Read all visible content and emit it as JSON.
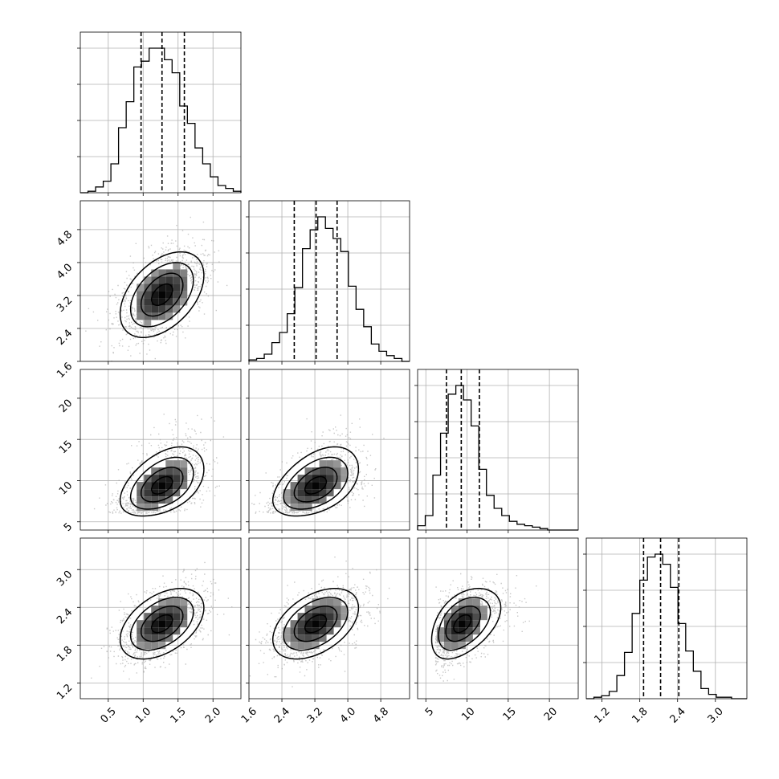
{
  "chart_data": {
    "type": "corner",
    "parameters": [
      {
        "range": [
          0.1,
          2.4
        ],
        "ticks": [
          0.5,
          1.0,
          1.5,
          2.0
        ],
        "tick_labels": [
          "0.5",
          "1.0",
          "1.5",
          "2.0"
        ],
        "quantiles": [
          0.97,
          1.27,
          1.59
        ],
        "mean": 1.27,
        "sd": 0.3
      },
      {
        "range": [
          1.6,
          5.5
        ],
        "ticks": [
          1.6,
          2.4,
          3.2,
          4.0,
          4.8
        ],
        "tick_labels": [
          "1.6",
          "2.4",
          "3.2",
          "4.0",
          "4.8"
        ],
        "quantiles": [
          2.7,
          3.23,
          3.74
        ],
        "mean": 3.22,
        "sd": 0.52
      },
      {
        "range": [
          4.0,
          23.5
        ],
        "ticks": [
          5,
          10,
          15,
          20
        ],
        "tick_labels": [
          "5",
          "10",
          "15",
          "20"
        ],
        "quantiles": [
          7.5,
          9.3,
          11.5
        ],
        "mean": 9.4,
        "sd": 2.1
      },
      {
        "range": [
          0.95,
          3.5
        ],
        "ticks": [
          1.2,
          1.8,
          2.4,
          3.0
        ],
        "tick_labels": [
          "1.2",
          "1.8",
          "2.4",
          "3.0"
        ],
        "quantiles": [
          1.86,
          2.13,
          2.42
        ],
        "mean": 2.14,
        "sd": 0.28
      }
    ],
    "correlation": 0.45,
    "histograms": [
      [
        0.0,
        0.01,
        0.04,
        0.08,
        0.2,
        0.45,
        0.63,
        0.87,
        0.91,
        1.0,
        1.0,
        0.92,
        0.83,
        0.6,
        0.48,
        0.31,
        0.2,
        0.11,
        0.05,
        0.03,
        0.01
      ],
      [
        0.01,
        0.02,
        0.05,
        0.13,
        0.2,
        0.33,
        0.51,
        0.78,
        0.91,
        1.0,
        0.92,
        0.85,
        0.76,
        0.52,
        0.36,
        0.24,
        0.12,
        0.07,
        0.04,
        0.02,
        0.0
      ],
      [
        0.03,
        0.1,
        0.38,
        0.67,
        0.94,
        1.0,
        0.9,
        0.72,
        0.42,
        0.24,
        0.15,
        0.1,
        0.06,
        0.04,
        0.03,
        0.02,
        0.01,
        0.0,
        0.0,
        0.0,
        0.0
      ],
      [
        0.0,
        0.01,
        0.02,
        0.05,
        0.16,
        0.32,
        0.59,
        0.82,
        0.98,
        1.0,
        0.93,
        0.77,
        0.52,
        0.33,
        0.19,
        0.07,
        0.03,
        0.01,
        0.01,
        0.0,
        0.0
      ]
    ],
    "grid": true,
    "xlabel": "",
    "ylabel": ""
  }
}
